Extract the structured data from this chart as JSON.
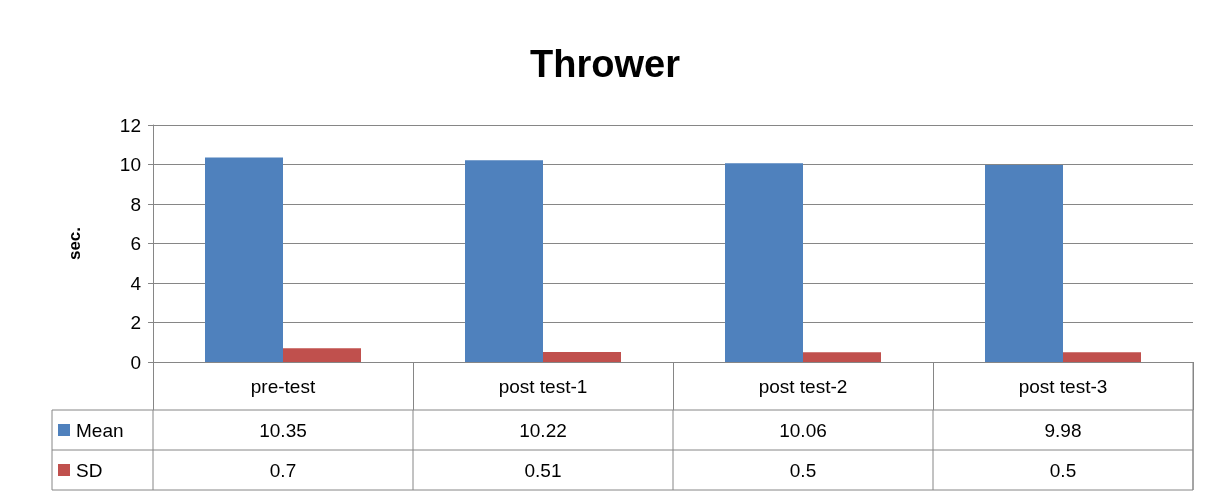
{
  "chart_data": {
    "type": "bar",
    "title": "Thrower",
    "ylabel": "sec.",
    "categories": [
      "pre-test",
      "post test-1",
      "post test-2",
      "post test-3"
    ],
    "series": [
      {
        "name": "Mean",
        "color": "#4f81bd",
        "values": [
          10.35,
          10.22,
          10.06,
          9.98
        ]
      },
      {
        "name": "SD",
        "color": "#c0504d",
        "values": [
          0.7,
          0.51,
          0.5,
          0.5
        ]
      }
    ],
    "ylim": [
      0,
      12
    ],
    "yticks": [
      0,
      2,
      4,
      6,
      8,
      10,
      12
    ],
    "grid": "y",
    "legend": "bottom",
    "data_labels": true
  }
}
